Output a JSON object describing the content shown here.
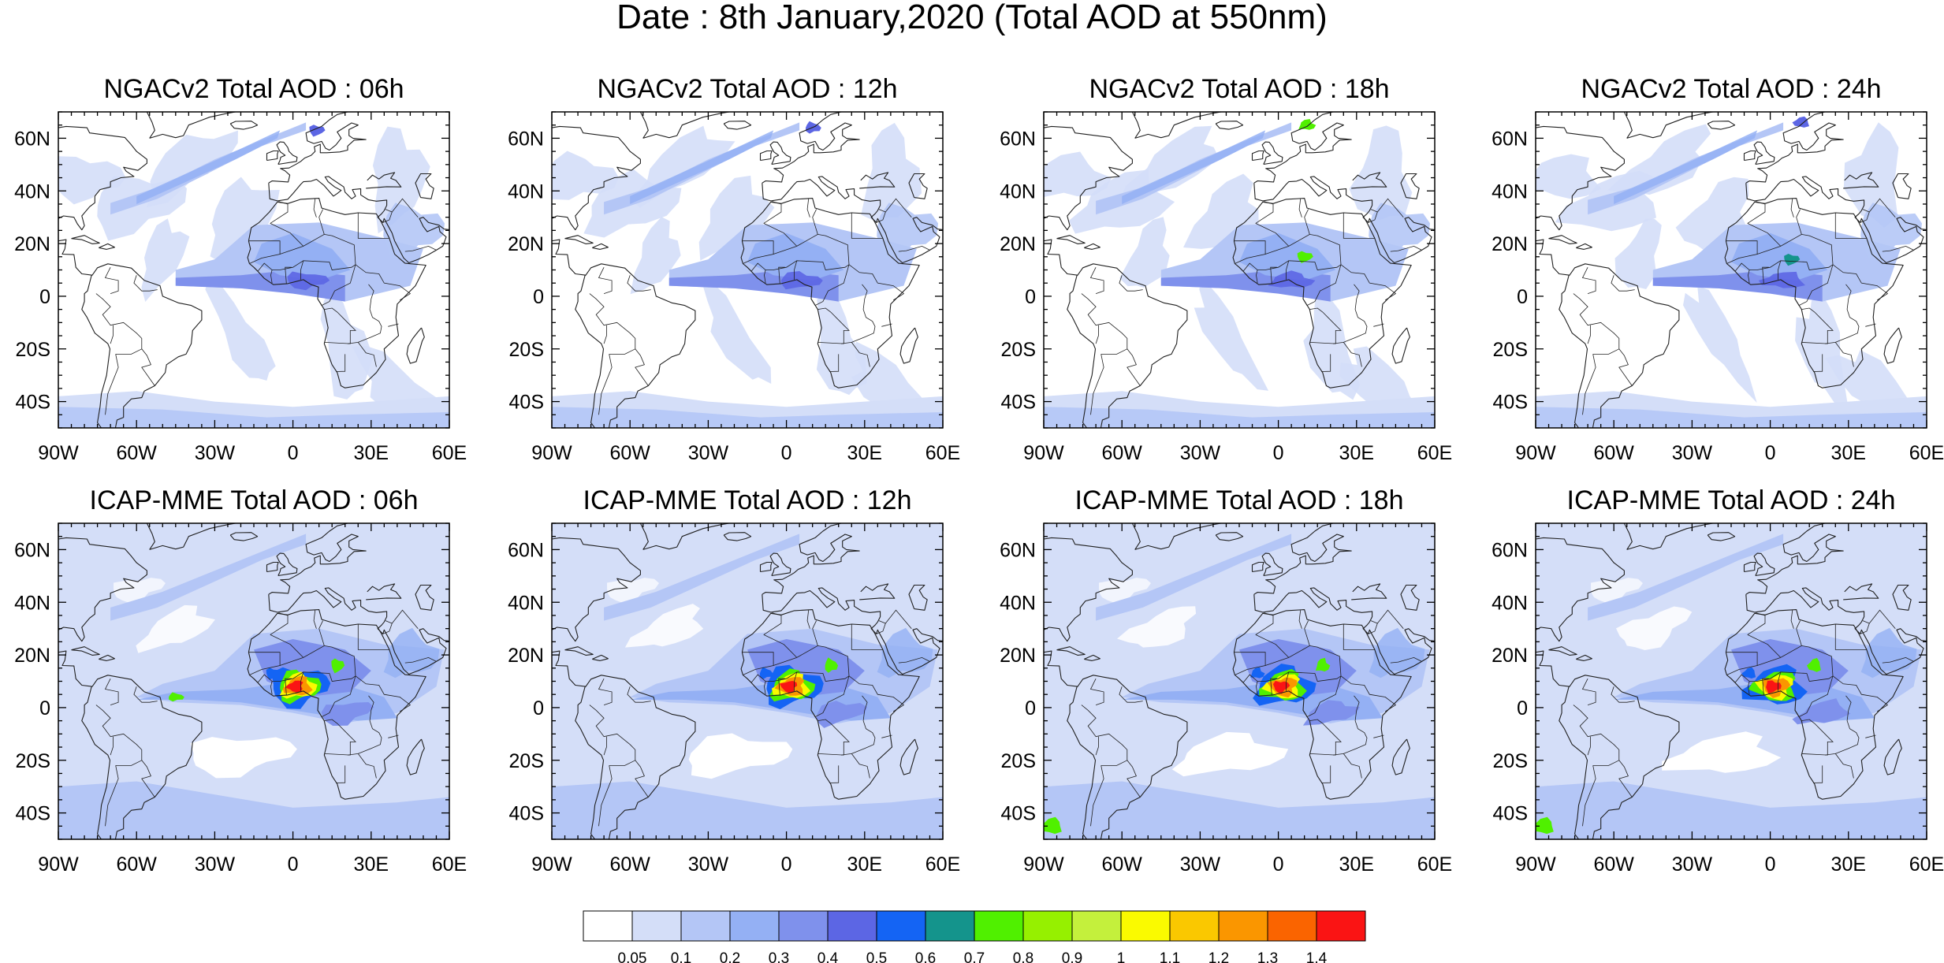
{
  "figure": {
    "title": "Date : 8th January,2020 (Total AOD at 550nm)"
  },
  "panels": [
    {
      "id": "ngac-06",
      "model": "NGACv2",
      "title": "NGACv2 Total AOD : 06h",
      "hour": "06h"
    },
    {
      "id": "ngac-12",
      "model": "NGACv2",
      "title": "NGACv2 Total AOD : 12h",
      "hour": "12h"
    },
    {
      "id": "ngac-18",
      "model": "NGACv2",
      "title": "NGACv2 Total AOD : 18h",
      "hour": "18h"
    },
    {
      "id": "ngac-24",
      "model": "NGACv2",
      "title": "NGACv2 Total AOD : 24h",
      "hour": "24h"
    },
    {
      "id": "icap-06",
      "model": "ICAP-MME",
      "title": "ICAP-MME Total AOD : 06h",
      "hour": "06h"
    },
    {
      "id": "icap-12",
      "model": "ICAP-MME",
      "title": "ICAP-MME Total AOD : 12h",
      "hour": "12h"
    },
    {
      "id": "icap-18",
      "model": "ICAP-MME",
      "title": "ICAP-MME Total AOD : 18h",
      "hour": "18h"
    },
    {
      "id": "icap-24",
      "model": "ICAP-MME",
      "title": "ICAP-MME Total AOD : 24h",
      "hour": "24h"
    }
  ],
  "axes": {
    "lon_ticks": [
      "90W",
      "60W",
      "30W",
      "0",
      "30E",
      "60E"
    ],
    "lon_values": [
      -90,
      -60,
      -30,
      0,
      30,
      60
    ],
    "lat_ticks": [
      "60N",
      "40N",
      "20N",
      "0",
      "20S",
      "40S"
    ],
    "lat_values": [
      60,
      40,
      20,
      0,
      -20,
      -40
    ],
    "lon_range": [
      -90,
      60
    ],
    "lat_range": [
      -50,
      70
    ]
  },
  "colorbar": {
    "labels": [
      "0.05",
      "0.1",
      "0.2",
      "0.3",
      "0.4",
      "0.5",
      "0.6",
      "0.7",
      "0.8",
      "0.9",
      "1",
      "1.1",
      "1.2",
      "1.3",
      "1.4"
    ],
    "colors": [
      "#ffffff",
      "#d4def8",
      "#b4c6f6",
      "#94b0f4",
      "#7f91ec",
      "#5c66e4",
      "#1464f4",
      "#14948c",
      "#50f000",
      "#96f000",
      "#c4f03c",
      "#fafa00",
      "#fac800",
      "#fa9600",
      "#fa6400",
      "#fa1414"
    ]
  },
  "colors": {
    "land_outline": "#202020",
    "frame": "#000000"
  }
}
